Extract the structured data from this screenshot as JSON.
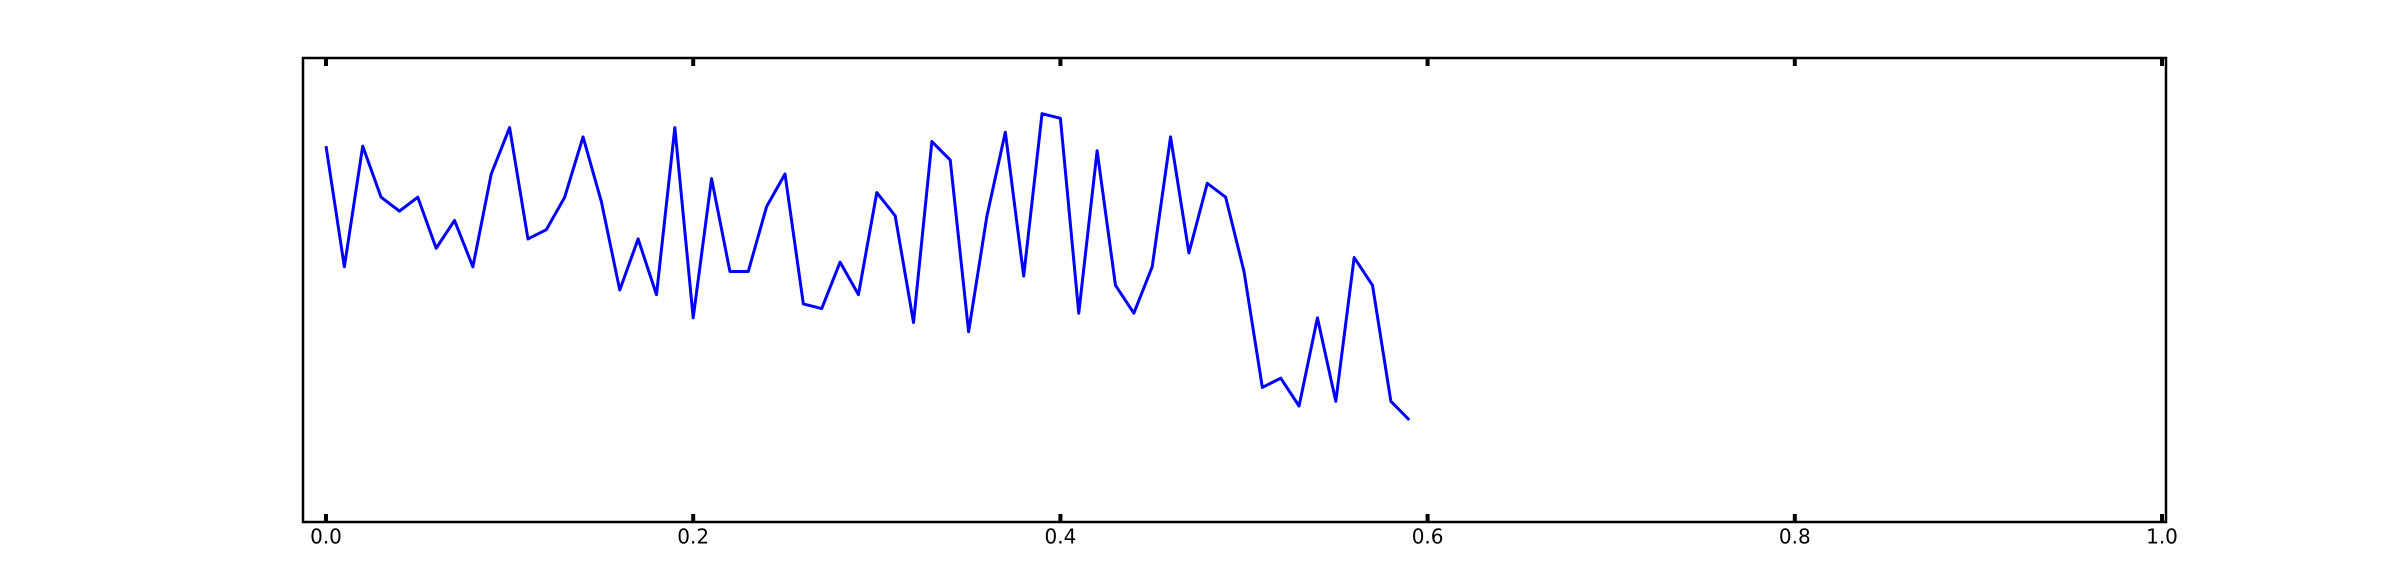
{
  "chart_data": {
    "type": "line",
    "x": [
      0,
      0.01,
      0.02,
      0.03,
      0.04,
      0.05,
      0.06,
      0.07,
      0.08,
      0.09,
      0.1,
      0.11,
      0.12,
      0.13,
      0.14,
      0.15,
      0.16,
      0.17,
      0.18,
      0.19,
      0.2,
      0.21,
      0.22,
      0.23,
      0.24,
      0.25,
      0.26,
      0.27,
      0.28,
      0.29,
      0.3,
      0.31,
      0.32,
      0.33,
      0.34,
      0.35,
      0.36,
      0.37,
      0.38,
      0.39,
      0.4,
      0.41,
      0.42,
      0.43,
      0.44,
      0.45,
      0.46,
      0.47,
      0.48,
      0.49,
      0.5,
      0.51,
      0.52,
      0.53,
      0.54,
      0.55,
      0.56,
      0.57,
      0.58,
      0.59
    ],
    "series": [
      {
        "color": "#0000ff",
        "values": [
          0.81,
          0.55,
          0.81,
          0.7,
          0.67,
          0.7,
          0.59,
          0.65,
          0.55,
          0.75,
          0.85,
          0.61,
          0.63,
          0.7,
          0.83,
          0.69,
          0.5,
          0.61,
          0.49,
          0.85,
          0.44,
          0.74,
          0.54,
          0.54,
          0.68,
          0.75,
          0.47,
          0.46,
          0.56,
          0.49,
          0.71,
          0.66,
          0.43,
          0.82,
          0.78,
          0.41,
          0.66,
          0.84,
          0.53,
          0.88,
          0.87,
          0.45,
          0.8,
          0.51,
          0.45,
          0.55,
          0.83,
          0.58,
          0.73,
          0.7,
          0.54,
          0.29,
          0.31,
          0.25,
          0.44,
          0.26,
          0.57,
          0.51,
          0.26,
          0.22
        ]
      }
    ],
    "xlim": [
      0,
      1
    ],
    "xticks": [
      {
        "value": 0,
        "label": "0.0"
      },
      0.2,
      0.4,
      0.6,
      0.8,
      {
        "value": 1,
        "label": "1.0"
      }
    ],
    "ylim": [
      0,
      1
    ]
  }
}
